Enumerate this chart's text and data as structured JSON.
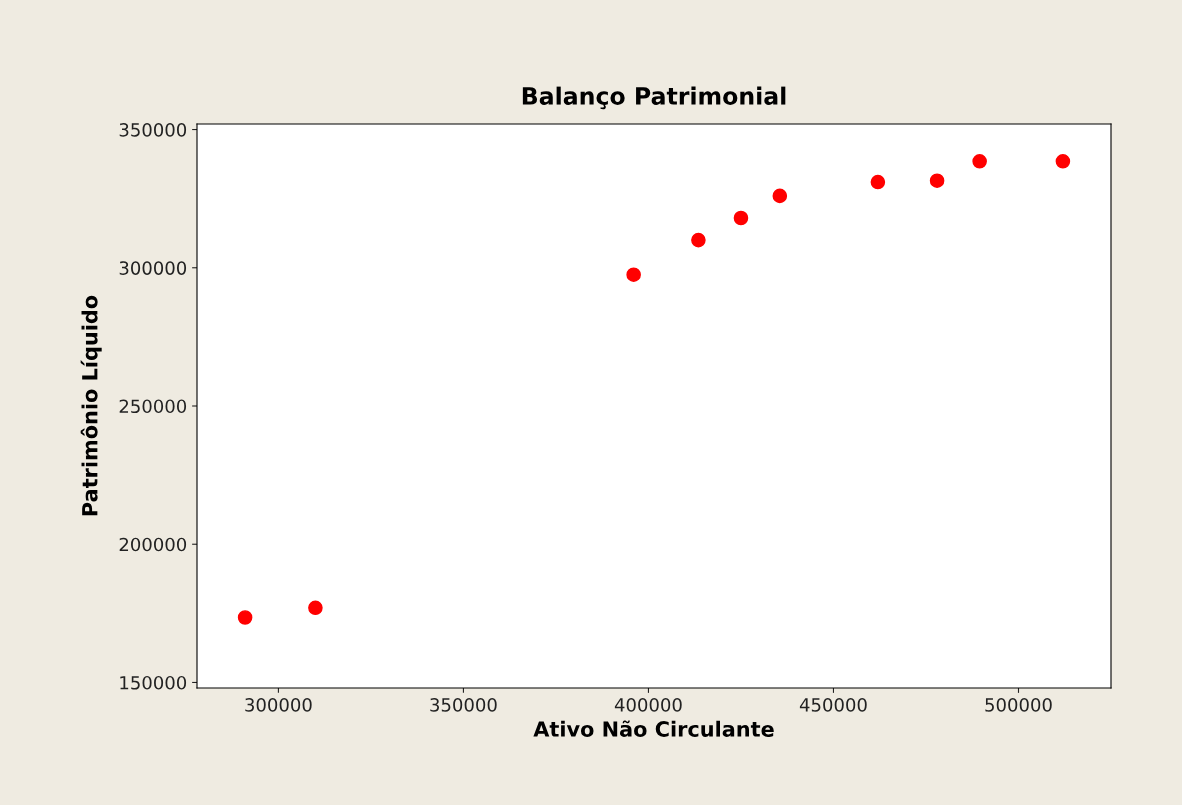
{
  "chart_data": {
    "type": "scatter",
    "title": "Balanço Patrimonial",
    "xlabel": "Ativo Não Circulante",
    "ylabel": "Patrimônio Líquido",
    "x": [
      291000,
      310000,
      396000,
      413500,
      425000,
      435500,
      462000,
      478000,
      489500,
      512000
    ],
    "series": [
      {
        "color": "#ff0000",
        "values": [
          173500,
          177000,
          297500,
          310000,
          318000,
          326000,
          331000,
          331500,
          338500,
          338500
        ]
      }
    ],
    "xlim": [
      278000,
      525000
    ],
    "ylim": [
      148000,
      352000
    ],
    "xticks": [
      300000,
      350000,
      400000,
      450000,
      500000
    ],
    "yticks": [
      150000,
      200000,
      250000,
      300000,
      350000
    ],
    "marker": "circle",
    "grid": false
  }
}
